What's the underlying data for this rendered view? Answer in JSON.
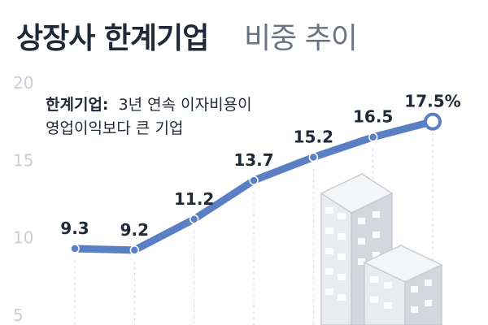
{
  "title": {
    "bold": "상장사 한계기업",
    "light": "비중 추이"
  },
  "note": {
    "label": "한계기업:",
    "line1": "3년 연속 이자비용이",
    "line2": "영업이익보다 큰 기업"
  },
  "colors": {
    "line": "#5b7fc4",
    "grid": "#cfd4dc",
    "axis_text": "#c9ced6",
    "title": "#1f2937",
    "building_face": "#e9ebee",
    "building_side": "#c9ccd2",
    "building_window": "#ffffff"
  },
  "chart_data": {
    "type": "line",
    "ylim": [
      5,
      20
    ],
    "yticks": [
      5,
      10,
      15,
      20
    ],
    "grid": true,
    "series": [
      {
        "values": [
          9.3,
          9.2,
          11.2,
          13.7,
          15.2,
          16.5,
          17.5
        ],
        "labels": [
          "9.3",
          "9.2",
          "11.2",
          "13.7",
          "15.2",
          "16.5",
          "17.5%"
        ]
      }
    ]
  }
}
